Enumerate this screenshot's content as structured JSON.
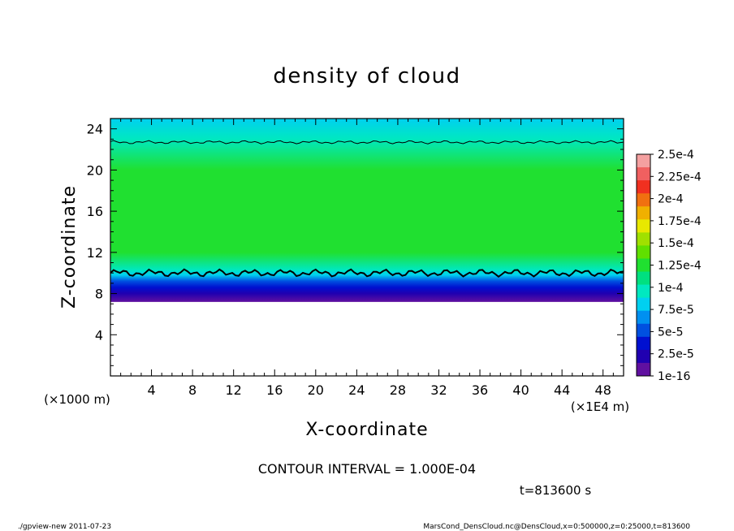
{
  "chart_data": {
    "type": "heatmap",
    "title": "density of cloud",
    "xlabel": "X-coordinate",
    "ylabel": "Z-coordinate",
    "x_scale_note": "(×1E4 m)",
    "y_scale_note": "(×1000 m)",
    "xlim": [
      0,
      50
    ],
    "ylim": [
      0,
      25
    ],
    "x_ticks": [
      4,
      8,
      12,
      16,
      20,
      24,
      28,
      32,
      36,
      40,
      44,
      48
    ],
    "y_ticks": [
      4,
      8,
      12,
      16,
      20,
      24
    ],
    "profile": {
      "z": [
        7.2,
        8.0,
        8.6,
        9.2,
        9.8,
        10.3,
        12,
        15,
        20,
        23,
        25
      ],
      "value": [
        1e-16,
        2.5e-05,
        3.5e-05,
        5.5e-05,
        7.5e-05,
        0.0001,
        0.00012,
        0.00013,
        0.000125,
        0.0001,
        8.5e-05
      ]
    },
    "contours": [
      {
        "level": 0.0001,
        "z": 10.0
      },
      {
        "level": 0.0001,
        "z": 22.7
      }
    ],
    "colorbar": {
      "labels": [
        "2.5e-4",
        "2.25e-4",
        "2e-4",
        "1.75e-4",
        "1.5e-4",
        "1.25e-4",
        "1e-4",
        "7.5e-5",
        "5e-5",
        "2.5e-5",
        "1e-16"
      ],
      "colors": [
        "#f4a0a0",
        "#f06060",
        "#f03020",
        "#f07010",
        "#f0b000",
        "#e8e800",
        "#a0e000",
        "#60e000",
        "#20e030",
        "#00e080",
        "#00e8c0",
        "#00d0f0",
        "#0090f0",
        "#0050e0",
        "#0010d0",
        "#2000b0",
        "#6010a0"
      ],
      "grid": false
    },
    "contour_interval_text": "CONTOUR INTERVAL = 1.000E-04",
    "time_text": "t=813600 s"
  },
  "footer": {
    "left": "./gpview-new   2011-07-23",
    "right": "MarsCond_DensCloud.nc@DensCloud,x=0:500000,z=0:25000,t=813600"
  }
}
